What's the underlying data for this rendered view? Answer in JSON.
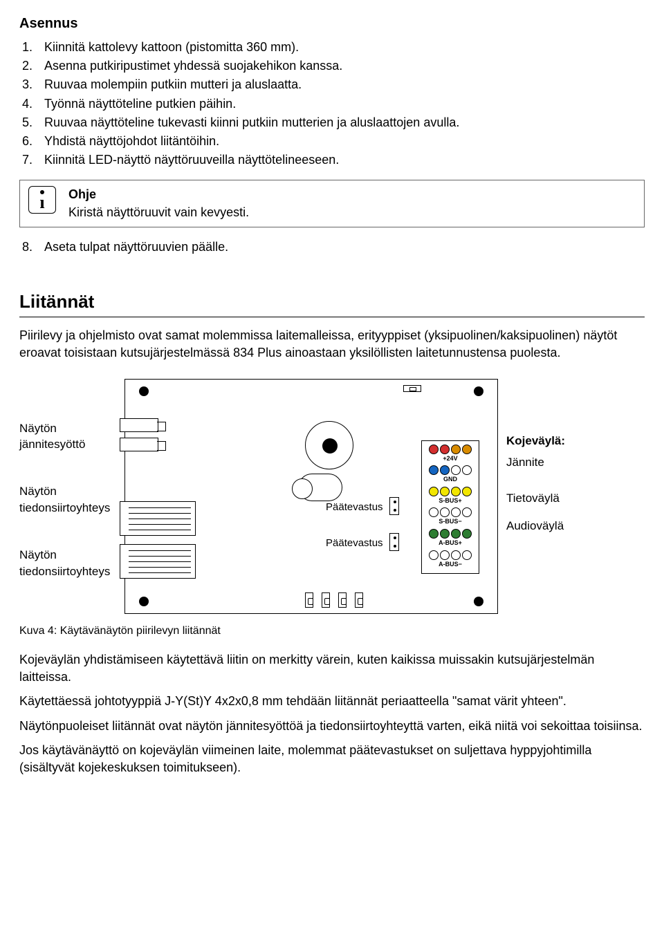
{
  "install": {
    "heading": "Asennus",
    "steps": [
      "Kiinnitä kattolevy kattoon (pistomitta 360 mm).",
      "Asenna putkiripustimet yhdessä suojakehikon kanssa.",
      "Ruuvaa molempiin putkiin mutteri ja aluslaatta.",
      "Työnnä näyttöteline putkien päihin.",
      "Ruuvaa näyttöteline tukevasti kiinni putkiin mutterien ja aluslaattojen avulla.",
      "Yhdistä näyttöjohdot liitäntöihin.",
      "Kiinnitä LED-näyttö näyttöruuveilla näyttötelineeseen."
    ],
    "info_title": "Ohje",
    "info_text": "Kiristä näyttöruuvit vain kevyesti.",
    "step8_num": "8.",
    "step8_text": "Aseta tulpat näyttöruuvien päälle."
  },
  "connections": {
    "heading": "Liitännät",
    "intro": "Piirilevy ja ohjelmisto ovat samat molemmissa laitemalleissa, erityyppiset (yksipuolinen/kaksipuolinen) näytöt eroavat toisistaan kutsujärjestelmässä 834 Plus ainoastaan yksilöllisten laitetunnustensa puolesta.",
    "caption": "Kuva 4: Käytävänäytön piirilevyn liitännät",
    "paras": [
      "Kojeväylän yhdistämiseen käytettävä liitin on merkitty värein, kuten kaikissa muissakin kutsujärjestelmän laitteissa.",
      "Käytettäessä johtotyyppiä J-Y(St)Y 4x2x0,8 mm tehdään liitännät periaatteella \"samat värit yhteen\".",
      "Näytönpuoleiset liitännät ovat näytön jännitesyöttöä ja tiedonsiirtoyhteyttä varten, eikä niitä voi sekoittaa toisiinsa.",
      "Jos käytävänäyttö on kojeväylän viimeinen laite, molemmat päätevastukset on suljettava hyppyjohtimilla (sisältyvät kojekeskuksen toimitukseen)."
    ]
  },
  "diagram": {
    "left": {
      "power": "Näytön jännitesyöttö",
      "data1": "Näytön tiedonsiirtoyhteys",
      "data2": "Näytön tiedonsiirtoyhteys"
    },
    "right": {
      "heading": "Kojeväylä:",
      "voltage": "Jännite",
      "databus": "Tietoväylä",
      "audiobus": "Audioväylä"
    },
    "board": {
      "terminator": "Päätevastus",
      "pins": [
        {
          "label": "+24V",
          "colors": [
            "#d32f2f",
            "#d32f2f",
            "#d98c00",
            "#d98c00"
          ]
        },
        {
          "label": "GND",
          "colors": [
            "#1565c0",
            "#1565c0",
            "#ffffff",
            "#ffffff"
          ]
        },
        {
          "label": "S-BUS+",
          "colors": [
            "#f2e600",
            "#f2e600",
            "#f2e600",
            "#f2e600"
          ]
        },
        {
          "label": "S-BUS−",
          "colors": [
            "#ffffff",
            "#ffffff",
            "#ffffff",
            "#ffffff"
          ]
        },
        {
          "label": "A-BUS+",
          "colors": [
            "#2e7d32",
            "#2e7d32",
            "#2e7d32",
            "#2e7d32"
          ]
        },
        {
          "label": "A-BUS−",
          "colors": [
            "#ffffff",
            "#ffffff",
            "#ffffff",
            "#ffffff"
          ]
        }
      ]
    }
  }
}
